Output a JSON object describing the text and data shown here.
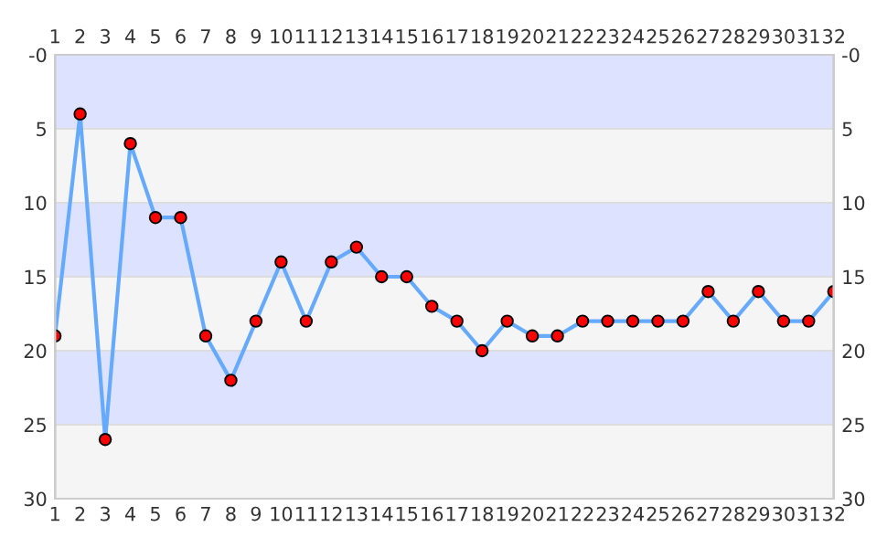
{
  "chart_data": {
    "type": "line",
    "x": [
      1,
      2,
      3,
      4,
      5,
      6,
      7,
      8,
      9,
      10,
      11,
      12,
      13,
      14,
      15,
      16,
      17,
      18,
      19,
      20,
      21,
      22,
      23,
      24,
      25,
      26,
      27,
      28,
      29,
      30,
      31,
      32
    ],
    "series": [
      {
        "color": "#66aaff",
        "values": [
          19,
          4,
          26,
          6,
          11,
          11,
          19,
          22,
          18,
          14,
          18,
          14,
          13,
          15,
          15,
          17,
          18,
          20,
          18,
          19,
          19,
          18,
          18,
          18,
          18,
          18,
          16,
          18,
          16,
          18,
          18,
          16
        ]
      }
    ],
    "marker": "circle",
    "line_style": "solid",
    "xlim": [
      1,
      32
    ],
    "xticks": [
      1,
      2,
      3,
      4,
      5,
      6,
      7,
      8,
      9,
      10,
      11,
      12,
      13,
      14,
      15,
      16,
      17,
      18,
      19,
      20,
      21,
      22,
      23,
      24,
      25,
      26,
      27,
      28,
      29,
      30,
      31,
      32
    ],
    "x2lim": [
      1,
      32
    ],
    "x2ticks": [
      1,
      2,
      3,
      4,
      5,
      6,
      7,
      8,
      9,
      10,
      11,
      12,
      13,
      14,
      15,
      16,
      17,
      18,
      19,
      20,
      21,
      22,
      23,
      24,
      25,
      26,
      27,
      28,
      29,
      30,
      31,
      32
    ],
    "ylim": [
      30,
      0
    ],
    "yticks": [
      {
        "value": 0,
        "label": "-0"
      },
      5,
      10,
      15,
      20,
      25,
      30
    ],
    "y2lim": [
      30,
      0
    ],
    "y2ticks": [
      {
        "value": 0,
        "label": "-0"
      },
      5,
      10,
      15,
      20,
      25,
      30
    ],
    "bands": [
      {
        "axis": "y",
        "from": 0,
        "to": 5,
        "color": "#dde3ff"
      },
      {
        "axis": "y",
        "from": 5,
        "to": 10,
        "color": "#f5f5f5"
      },
      {
        "axis": "y",
        "from": 10,
        "to": 15,
        "color": "#dde3ff"
      },
      {
        "axis": "y",
        "from": 15,
        "to": 20,
        "color": "#f5f5f5"
      },
      {
        "axis": "y",
        "from": 20,
        "to": 25,
        "color": "#dde3ff"
      },
      {
        "axis": "y",
        "from": 25,
        "to": 30,
        "color": "#f5f5f5"
      }
    ],
    "grid": "y"
  }
}
